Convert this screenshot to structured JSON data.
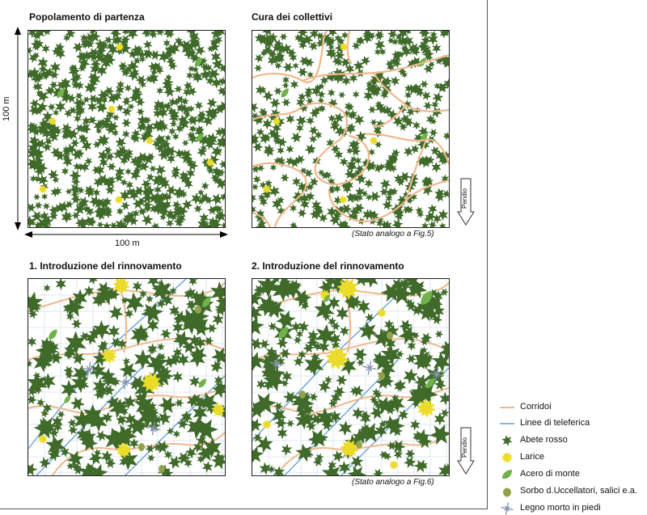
{
  "panels": {
    "p1": {
      "title": "Popolamento di partenza"
    },
    "p2": {
      "title": "Cura dei collettivi",
      "note": "(Stato analogo a Fig.5)"
    },
    "p3": {
      "title": "1. Introduzione del rinnovamento"
    },
    "p4": {
      "title": "2. Introduzione del rinnovamento",
      "note": "(Stato analogo a Fig.6)"
    }
  },
  "dimensions": {
    "width_label": "100 m",
    "height_label": "100 m"
  },
  "slope_label": "Pendio",
  "legend": {
    "items": [
      {
        "key": "corridor",
        "label": "Corridoi"
      },
      {
        "key": "cableway",
        "label": "Linee di teleferica"
      },
      {
        "key": "spruce",
        "label": "Abete rosso"
      },
      {
        "key": "larch",
        "label": "Larice"
      },
      {
        "key": "maple",
        "label": "Acero di monte"
      },
      {
        "key": "rowan",
        "label": "Sorbo d.Uccellatori, salici e.a."
      },
      {
        "key": "deadwood",
        "label": "Legno morto in piedi"
      }
    ]
  },
  "colors": {
    "spruce": "#3f6a2a",
    "larch": "#ecdc2a",
    "maple": "#6fb24a",
    "rowan": "#93a24a",
    "corridor": "#f0b88c",
    "cableway": "#5f9ed6",
    "deadwood": "#8a94b2",
    "grid": "#dfe8f2"
  }
}
